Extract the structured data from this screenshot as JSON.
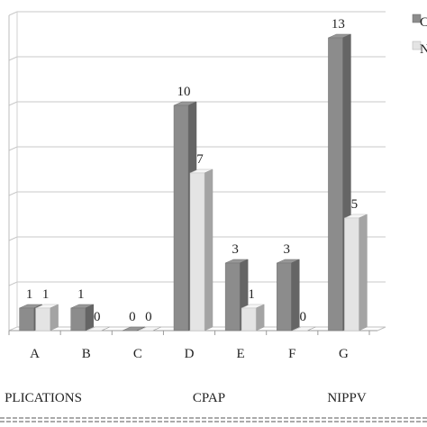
{
  "chart_data": {
    "type": "bar",
    "categories": [
      "A",
      "B",
      "C",
      "D",
      "E",
      "F",
      "G"
    ],
    "series": [
      {
        "name": "C",
        "values": [
          1,
          1,
          0,
          10,
          3,
          3,
          13
        ],
        "color": "#8c8c8c"
      },
      {
        "name": "N",
        "values": [
          1,
          0,
          0,
          7,
          1,
          0,
          5
        ],
        "color": "#e4e4e4"
      }
    ],
    "data_labels": {
      "series_0": [
        "1",
        "1",
        "0",
        "10",
        "3",
        "3",
        "13"
      ],
      "series_1": [
        "1",
        "0",
        "0",
        "7",
        "1",
        "0",
        "5"
      ]
    },
    "ylim": [
      0,
      14
    ],
    "grid": true,
    "legend_placement": "top-right",
    "group_labels": [
      "PLICATIONS",
      "CPAP",
      "NIPPV"
    ],
    "title": "",
    "xlabel": "",
    "ylabel": ""
  }
}
